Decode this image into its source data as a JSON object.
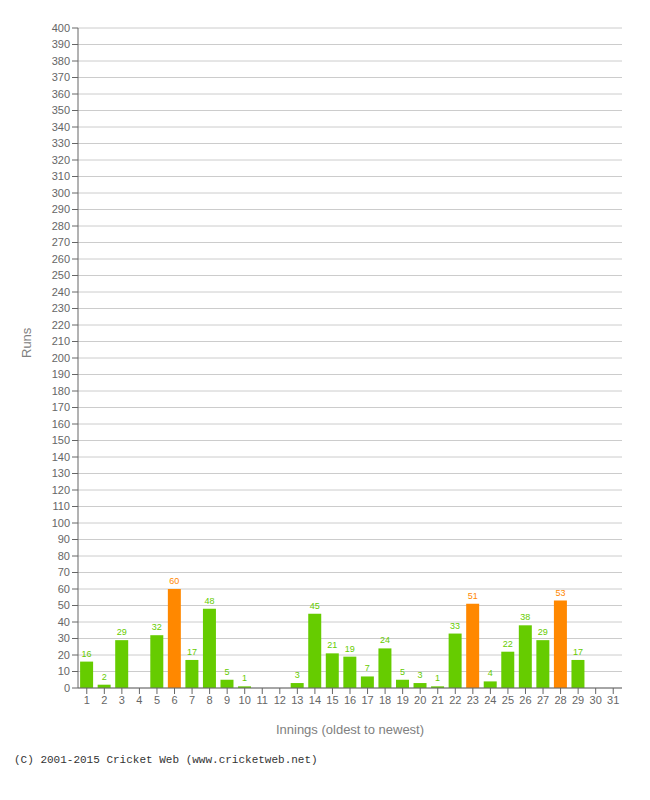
{
  "chart_data": {
    "type": "bar",
    "categories": [
      "1",
      "2",
      "3",
      "4",
      "5",
      "6",
      "7",
      "8",
      "9",
      "10",
      "11",
      "12",
      "13",
      "14",
      "15",
      "16",
      "17",
      "18",
      "19",
      "20",
      "21",
      "22",
      "23",
      "24",
      "25",
      "26",
      "27",
      "28",
      "29",
      "30",
      "31"
    ],
    "values": [
      16,
      2,
      29,
      0,
      32,
      60,
      17,
      48,
      5,
      1,
      0,
      0,
      3,
      45,
      21,
      19,
      7,
      24,
      5,
      3,
      1,
      33,
      51,
      4,
      22,
      38,
      29,
      53,
      17,
      0,
      null
    ],
    "colors": [
      "#66cc00",
      "#66cc00",
      "#66cc00",
      "#66cc00",
      "#66cc00",
      "#ff8800",
      "#66cc00",
      "#66cc00",
      "#66cc00",
      "#66cc00",
      "#66cc00",
      "#66cc00",
      "#66cc00",
      "#66cc00",
      "#66cc00",
      "#66cc00",
      "#66cc00",
      "#66cc00",
      "#66cc00",
      "#66cc00",
      "#66cc00",
      "#66cc00",
      "#ff8800",
      "#66cc00",
      "#66cc00",
      "#66cc00",
      "#66cc00",
      "#ff8800",
      "#66cc00",
      "#66cc00",
      "#66cc00"
    ],
    "x_label": "Innings (oldest to newest)",
    "y_label": "Runs",
    "ylim": [
      0,
      400
    ],
    "yticks": [
      0,
      10,
      20,
      30,
      40,
      50,
      60,
      70,
      80,
      90,
      100,
      110,
      120,
      130,
      140,
      150,
      160,
      170,
      180,
      190,
      200,
      210,
      220,
      230,
      240,
      250,
      260,
      270,
      280,
      290,
      300,
      310,
      320,
      330,
      340,
      350,
      360,
      370,
      380,
      390,
      400
    ],
    "grid": true,
    "data_labels": true,
    "annotations": [
      "(C) 2001-2015 Cricket Web (www.cricketweb.net)"
    ]
  }
}
